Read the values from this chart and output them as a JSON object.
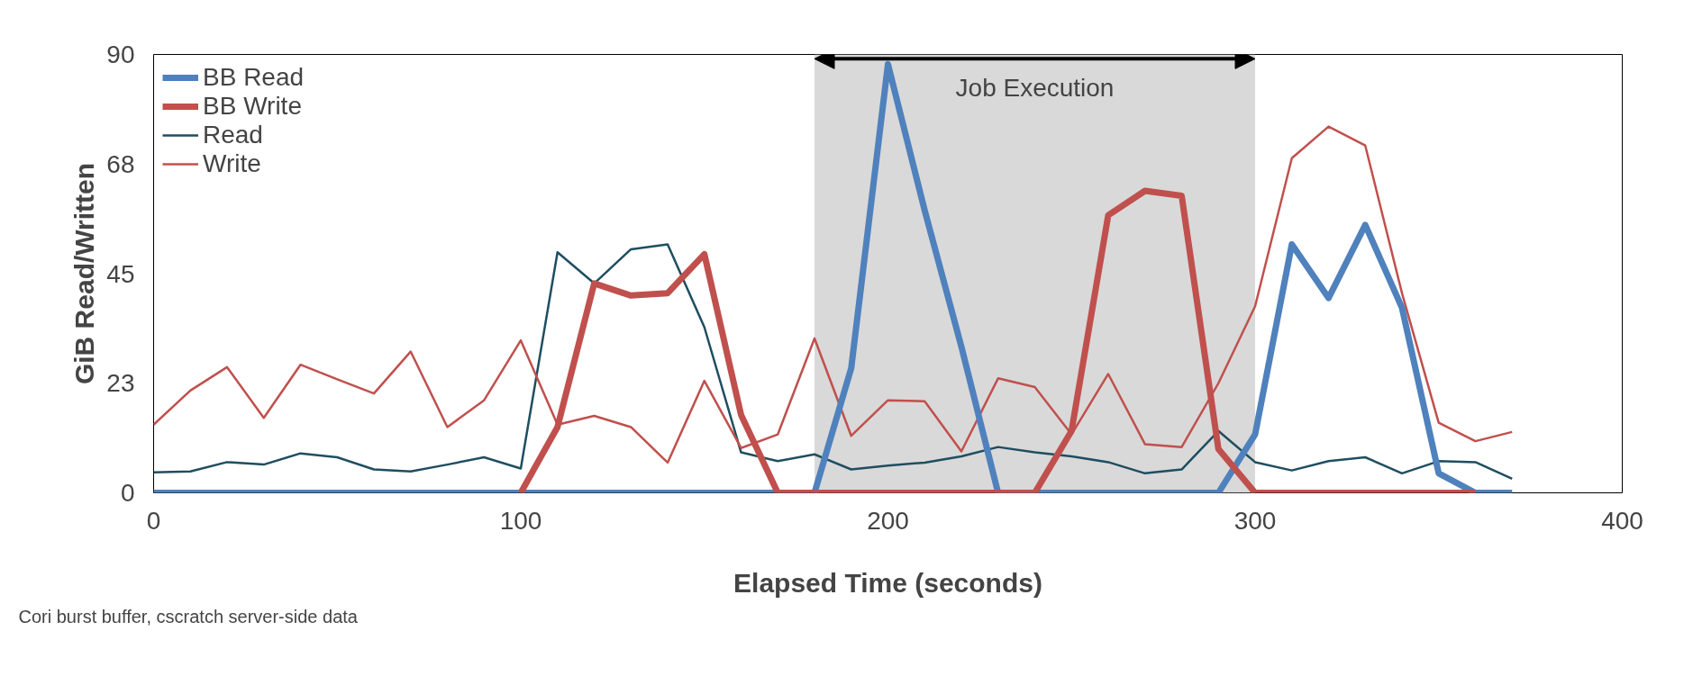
{
  "chart_data": {
    "type": "line",
    "xlabel": "Elapsed Time (seconds)",
    "ylabel": "GiB Read/Written",
    "x": [
      0,
      10,
      20,
      30,
      40,
      50,
      60,
      70,
      80,
      90,
      100,
      110,
      120,
      130,
      140,
      150,
      160,
      170,
      180,
      190,
      200,
      210,
      220,
      230,
      240,
      250,
      260,
      270,
      280,
      290,
      300,
      310,
      320,
      330,
      340,
      350,
      360,
      370
    ],
    "series": [
      {
        "name": "BB Read",
        "color": "#4f81bd",
        "values": [
          0,
          0,
          0,
          0,
          0,
          0,
          0,
          0,
          0,
          0,
          0,
          0,
          0,
          0,
          0,
          0,
          0,
          0,
          0,
          25.6,
          88,
          58,
          30,
          0,
          0,
          0,
          0,
          0,
          0,
          0,
          12,
          51,
          40,
          55,
          38,
          4,
          0,
          0
        ]
      },
      {
        "name": "BB Write",
        "color": "#c0504d",
        "values": [
          null,
          null,
          null,
          null,
          null,
          null,
          null,
          null,
          null,
          null,
          0,
          13.5,
          43,
          40.5,
          41,
          49,
          16,
          0,
          0,
          0,
          0,
          0,
          0,
          0,
          0,
          12.7,
          57,
          62,
          61,
          9,
          0,
          0,
          0,
          0,
          0,
          0,
          0,
          null
        ]
      },
      {
        "name": "Read",
        "color": "#1f4e60",
        "values": [
          4.2,
          4.4,
          6.3,
          5.8,
          8.1,
          7.3,
          4.8,
          4.4,
          5.8,
          7.3,
          5,
          49.4,
          43,
          50,
          51,
          34,
          8.3,
          6.5,
          7.9,
          4.8,
          5.6,
          6.2,
          7.5,
          9.4,
          8.3,
          7.5,
          6.3,
          4,
          4.8,
          12.7,
          6.3,
          4.6,
          6.5,
          7.3,
          4,
          6.5,
          6.3,
          2.9
        ]
      },
      {
        "name": "Write",
        "color": "#c0504d",
        "values": [
          14,
          21,
          25.8,
          15.4,
          26.3,
          23.3,
          20.4,
          29,
          13.5,
          19,
          31.3,
          14,
          15.8,
          13.5,
          6.2,
          23,
          9.2,
          12,
          31.7,
          11.7,
          19,
          18.8,
          8.5,
          23.5,
          21.7,
          12,
          24.4,
          10,
          9.4,
          22.5,
          38.3,
          68.7,
          75.2,
          71.3,
          41,
          14.4,
          10.6,
          12.5
        ]
      }
    ],
    "xlim": [
      0,
      400
    ],
    "xticks": [
      0,
      100,
      200,
      300,
      400
    ],
    "ylim": [
      0,
      90
    ],
    "yticks": [
      0,
      {
        "value": 22.5,
        "label": "23"
      },
      45,
      {
        "value": 67.5,
        "label": "68"
      },
      90
    ],
    "bands": [
      {
        "axis": "x",
        "from": 180,
        "to": 300,
        "label": "Job Execution",
        "color": "#d9d9d9"
      }
    ],
    "annotations": [
      "Cori burst buffer, cscratch server-side data"
    ],
    "legend": "top left",
    "grid": false
  }
}
